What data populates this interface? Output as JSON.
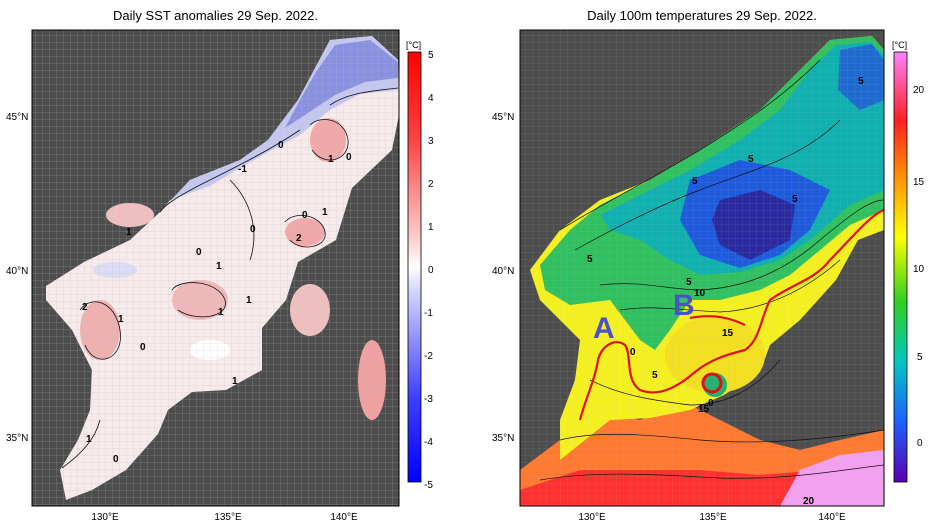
{
  "left": {
    "title": "Daily SST anomalies 29 Sep. 2022.",
    "unit": "[°C]",
    "colorbar_ticks": [
      "5",
      "4",
      "3",
      "2",
      "1",
      "0",
      "-1",
      "-2",
      "-3",
      "-4",
      "-5"
    ],
    "contour_labels": [
      "0",
      "-1",
      "1",
      "0",
      "1",
      "0",
      "1",
      "0",
      "2",
      "1",
      "0",
      "1",
      "1",
      "1",
      "0",
      "2",
      "1",
      "0",
      "1",
      "1",
      "0"
    ],
    "colors": {
      "land": "#4d4d4d",
      "neg": "#3b3bd6",
      "pos": "#d63b3b"
    }
  },
  "right": {
    "title": "Daily 100m temperatures 29 Sep. 2022.",
    "unit": "[°C]",
    "colorbar_ticks": [
      "20",
      "15",
      "10",
      "5",
      "0"
    ],
    "contour_labels": [
      "5",
      "5",
      "5",
      "5",
      "5",
      "5",
      "10",
      "15",
      "0",
      "5",
      "0",
      "15",
      "20"
    ],
    "markers": [
      "A",
      "B"
    ],
    "colors": {
      "marker": "#4a52c8",
      "front": "#e01010"
    }
  },
  "axes": {
    "lat_labels": [
      "45°N",
      "40°N",
      "35°N"
    ],
    "lon_labels": [
      "130°E",
      "135°E",
      "140°E"
    ]
  }
}
